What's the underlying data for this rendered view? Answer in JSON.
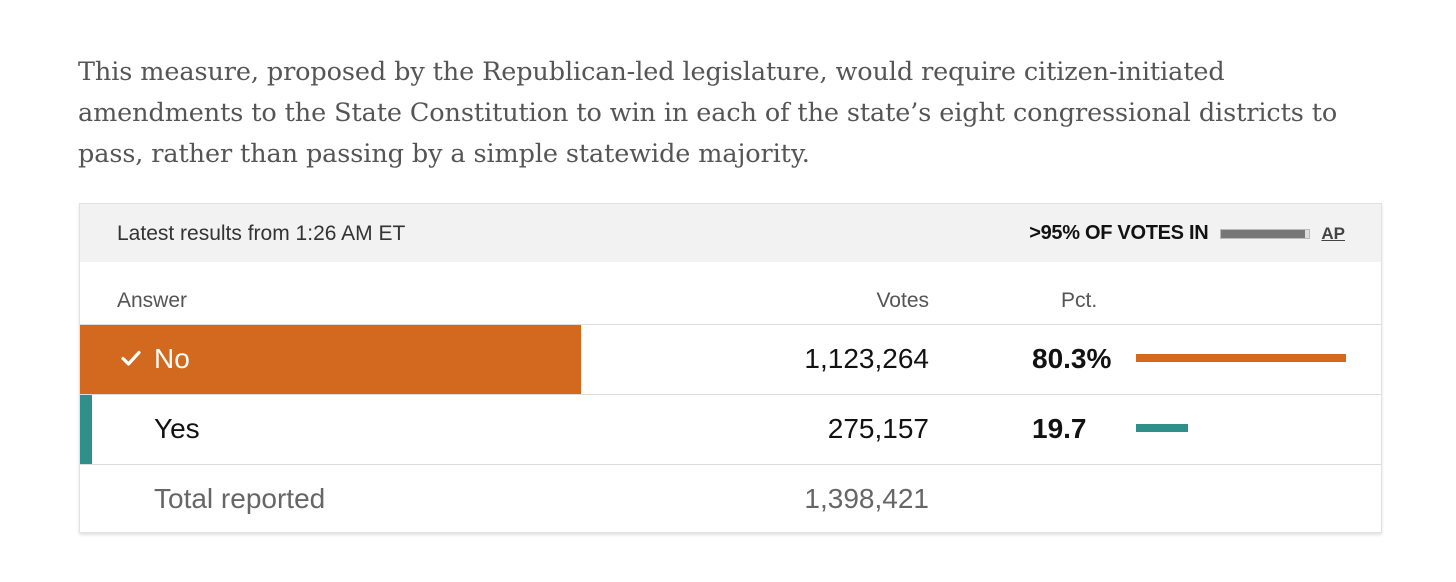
{
  "intro": {
    "text": "This measure, proposed by the Republican-led legislature, would require citizen-initiated amendments to the State Constitution to win in each of the state’s eight congressional districts to pass, rather than passing by a simple statewide majority."
  },
  "results": {
    "updated": "Latest results from 1:26 AM ET",
    "reporting_label": ">95% OF VOTES IN",
    "reporting_fraction": 0.95,
    "source_label": "AP",
    "columns": {
      "answer": "Answer",
      "votes": "Votes",
      "pct": "Pct."
    },
    "rows": [
      {
        "name": "No",
        "votes": "1,123,264",
        "pct": "80.3%",
        "pct_value": 80.3,
        "winner": true,
        "color": "#d2691e",
        "icon": "checkmark-icon"
      },
      {
        "name": "Yes",
        "votes": "275,157",
        "pct": "19.7",
        "pct_value": 19.7,
        "winner": false,
        "color": "#2f8f8a"
      }
    ],
    "total": {
      "label": "Total reported",
      "votes": "1,398,421"
    }
  }
}
